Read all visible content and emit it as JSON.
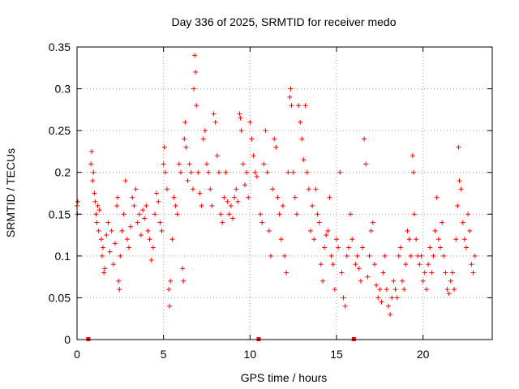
{
  "chart_data": {
    "type": "scatter",
    "title": "Day 336 of 2025, SRMTID for receiver medo",
    "xlabel": "GPS time / hours",
    "ylabel": "SRMTID / TECUs",
    "xlim": [
      0,
      24
    ],
    "ylim": [
      0,
      0.35
    ],
    "x_ticks": [
      0,
      5,
      10,
      15,
      20
    ],
    "x_tick_labels": [
      "0",
      "5",
      "10",
      "15",
      "20"
    ],
    "y_ticks": [
      0,
      0.05,
      0.1,
      0.15,
      0.2,
      0.25,
      0.3,
      0.35
    ],
    "y_tick_labels": [
      "0",
      "0.05",
      "0.1",
      "0.15",
      "0.2",
      "0.25",
      "0.3",
      "0.35"
    ],
    "grid": true,
    "marker": "plus",
    "color": "#ff0000",
    "data_gaps_hours": [
      0.65,
      10.5,
      16.0
    ],
    "series": [
      {
        "name": "SRMTID",
        "points": [
          [
            0.0,
            0.16
          ],
          [
            0.02,
            0.15
          ],
          [
            0.04,
            0.165
          ],
          [
            0.8,
            0.21
          ],
          [
            0.85,
            0.225
          ],
          [
            0.9,
            0.19
          ],
          [
            0.95,
            0.2
          ],
          [
            1.0,
            0.175
          ],
          [
            1.05,
            0.165
          ],
          [
            1.1,
            0.15
          ],
          [
            1.15,
            0.14
          ],
          [
            1.2,
            0.16
          ],
          [
            1.25,
            0.13
          ],
          [
            1.3,
            0.155
          ],
          [
            1.4,
            0.12
          ],
          [
            1.45,
            0.1
          ],
          [
            1.5,
            0.11
          ],
          [
            1.55,
            0.08
          ],
          [
            1.6,
            0.085
          ],
          [
            1.7,
            0.125
          ],
          [
            1.8,
            0.14
          ],
          [
            1.9,
            0.105
          ],
          [
            2.0,
            0.13
          ],
          [
            2.1,
            0.09
          ],
          [
            2.2,
            0.115
          ],
          [
            2.3,
            0.16
          ],
          [
            2.35,
            0.17
          ],
          [
            2.4,
            0.07
          ],
          [
            2.45,
            0.06
          ],
          [
            2.5,
            0.1
          ],
          [
            2.6,
            0.13
          ],
          [
            2.7,
            0.15
          ],
          [
            2.8,
            0.19
          ],
          [
            2.9,
            0.12
          ],
          [
            3.0,
            0.11
          ],
          [
            3.1,
            0.135
          ],
          [
            3.2,
            0.17
          ],
          [
            3.3,
            0.16
          ],
          [
            3.4,
            0.18
          ],
          [
            3.5,
            0.14
          ],
          [
            3.6,
            0.15
          ],
          [
            3.7,
            0.125
          ],
          [
            3.8,
            0.155
          ],
          [
            3.9,
            0.145
          ],
          [
            4.0,
            0.16
          ],
          [
            4.1,
            0.13
          ],
          [
            4.2,
            0.12
          ],
          [
            4.3,
            0.095
          ],
          [
            4.4,
            0.11
          ],
          [
            4.5,
            0.15
          ],
          [
            4.6,
            0.175
          ],
          [
            4.7,
            0.165
          ],
          [
            4.8,
            0.14
          ],
          [
            4.9,
            0.13
          ],
          [
            5.0,
            0.21
          ],
          [
            5.05,
            0.23
          ],
          [
            5.1,
            0.2
          ],
          [
            5.2,
            0.18
          ],
          [
            5.3,
            0.06
          ],
          [
            5.35,
            0.04
          ],
          [
            5.4,
            0.07
          ],
          [
            5.5,
            0.12
          ],
          [
            5.6,
            0.17
          ],
          [
            5.7,
            0.16
          ],
          [
            5.8,
            0.15
          ],
          [
            5.9,
            0.21
          ],
          [
            6.0,
            0.2
          ],
          [
            6.1,
            0.085
          ],
          [
            6.15,
            0.07
          ],
          [
            6.2,
            0.24
          ],
          [
            6.25,
            0.26
          ],
          [
            6.3,
            0.23
          ],
          [
            6.4,
            0.19
          ],
          [
            6.5,
            0.21
          ],
          [
            6.6,
            0.2
          ],
          [
            6.7,
            0.18
          ],
          [
            6.75,
            0.3
          ],
          [
            6.8,
            0.34
          ],
          [
            6.85,
            0.32
          ],
          [
            6.9,
            0.28
          ],
          [
            7.0,
            0.2
          ],
          [
            7.1,
            0.175
          ],
          [
            7.2,
            0.16
          ],
          [
            7.3,
            0.24
          ],
          [
            7.4,
            0.25
          ],
          [
            7.5,
            0.21
          ],
          [
            7.6,
            0.2
          ],
          [
            7.7,
            0.18
          ],
          [
            7.8,
            0.16
          ],
          [
            7.9,
            0.27
          ],
          [
            8.0,
            0.26
          ],
          [
            8.1,
            0.22
          ],
          [
            8.2,
            0.2
          ],
          [
            8.3,
            0.15
          ],
          [
            8.4,
            0.14
          ],
          [
            8.5,
            0.17
          ],
          [
            8.6,
            0.2
          ],
          [
            8.7,
            0.165
          ],
          [
            8.8,
            0.15
          ],
          [
            8.9,
            0.16
          ],
          [
            9.0,
            0.145
          ],
          [
            9.1,
            0.17
          ],
          [
            9.2,
            0.18
          ],
          [
            9.3,
            0.165
          ],
          [
            9.4,
            0.27
          ],
          [
            9.45,
            0.265
          ],
          [
            9.5,
            0.25
          ],
          [
            9.6,
            0.21
          ],
          [
            9.7,
            0.185
          ],
          [
            9.8,
            0.2
          ],
          [
            9.9,
            0.17
          ],
          [
            10.0,
            0.26
          ],
          [
            10.1,
            0.24
          ],
          [
            10.2,
            0.22
          ],
          [
            10.3,
            0.2
          ],
          [
            10.4,
            0.195
          ],
          [
            10.6,
            0.15
          ],
          [
            10.7,
            0.14
          ],
          [
            10.8,
            0.21
          ],
          [
            10.9,
            0.25
          ],
          [
            11.0,
            0.2
          ],
          [
            11.1,
            0.13
          ],
          [
            11.2,
            0.1
          ],
          [
            11.3,
            0.18
          ],
          [
            11.4,
            0.24
          ],
          [
            11.5,
            0.23
          ],
          [
            11.6,
            0.17
          ],
          [
            11.7,
            0.15
          ],
          [
            11.8,
            0.12
          ],
          [
            11.9,
            0.16
          ],
          [
            12.0,
            0.1
          ],
          [
            12.1,
            0.08
          ],
          [
            12.2,
            0.2
          ],
          [
            12.3,
            0.29
          ],
          [
            12.35,
            0.3
          ],
          [
            12.4,
            0.28
          ],
          [
            12.5,
            0.2
          ],
          [
            12.6,
            0.17
          ],
          [
            12.7,
            0.15
          ],
          [
            12.8,
            0.28
          ],
          [
            12.9,
            0.26
          ],
          [
            13.0,
            0.24
          ],
          [
            13.1,
            0.215
          ],
          [
            13.2,
            0.28
          ],
          [
            13.3,
            0.2
          ],
          [
            13.4,
            0.18
          ],
          [
            13.5,
            0.13
          ],
          [
            13.6,
            0.16
          ],
          [
            13.7,
            0.12
          ],
          [
            13.8,
            0.18
          ],
          [
            13.9,
            0.15
          ],
          [
            14.0,
            0.14
          ],
          [
            14.1,
            0.09
          ],
          [
            14.2,
            0.07
          ],
          [
            14.3,
            0.11
          ],
          [
            14.4,
            0.125
          ],
          [
            14.5,
            0.13
          ],
          [
            14.6,
            0.17
          ],
          [
            14.7,
            0.1
          ],
          [
            14.8,
            0.09
          ],
          [
            14.9,
            0.06
          ],
          [
            15.0,
            0.12
          ],
          [
            15.1,
            0.11
          ],
          [
            15.2,
            0.2
          ],
          [
            15.3,
            0.08
          ],
          [
            15.4,
            0.05
          ],
          [
            15.5,
            0.04
          ],
          [
            15.6,
            0.1
          ],
          [
            15.7,
            0.11
          ],
          [
            15.8,
            0.15
          ],
          [
            15.9,
            0.12
          ],
          [
            16.1,
            0.09
          ],
          [
            16.2,
            0.1
          ],
          [
            16.3,
            0.085
          ],
          [
            16.4,
            0.07
          ],
          [
            16.5,
            0.11
          ],
          [
            16.6,
            0.24
          ],
          [
            16.7,
            0.21
          ],
          [
            16.8,
            0.075
          ],
          [
            16.9,
            0.1
          ],
          [
            17.0,
            0.13
          ],
          [
            17.1,
            0.14
          ],
          [
            17.2,
            0.09
          ],
          [
            17.3,
            0.065
          ],
          [
            17.4,
            0.05
          ],
          [
            17.5,
            0.06
          ],
          [
            17.6,
            0.045
          ],
          [
            17.7,
            0.08
          ],
          [
            17.8,
            0.1
          ],
          [
            17.9,
            0.06
          ],
          [
            18.0,
            0.04
          ],
          [
            18.1,
            0.03
          ],
          [
            18.2,
            0.05
          ],
          [
            18.3,
            0.07
          ],
          [
            18.4,
            0.06
          ],
          [
            18.5,
            0.05
          ],
          [
            18.6,
            0.1
          ],
          [
            18.7,
            0.11
          ],
          [
            18.8,
            0.07
          ],
          [
            18.9,
            0.06
          ],
          [
            19.0,
            0.09
          ],
          [
            19.1,
            0.13
          ],
          [
            19.2,
            0.12
          ],
          [
            19.3,
            0.1
          ],
          [
            19.4,
            0.22
          ],
          [
            19.45,
            0.2
          ],
          [
            19.5,
            0.15
          ],
          [
            19.6,
            0.12
          ],
          [
            19.7,
            0.1
          ],
          [
            19.8,
            0.09
          ],
          [
            19.9,
            0.1
          ],
          [
            20.0,
            0.07
          ],
          [
            20.1,
            0.08
          ],
          [
            20.2,
            0.06
          ],
          [
            20.3,
            0.09
          ],
          [
            20.4,
            0.11
          ],
          [
            20.5,
            0.08
          ],
          [
            20.6,
            0.1
          ],
          [
            20.7,
            0.13
          ],
          [
            20.8,
            0.17
          ],
          [
            20.9,
            0.12
          ],
          [
            21.0,
            0.11
          ],
          [
            21.1,
            0.14
          ],
          [
            21.2,
            0.1
          ],
          [
            21.3,
            0.08
          ],
          [
            21.4,
            0.06
          ],
          [
            21.5,
            0.055
          ],
          [
            21.6,
            0.07
          ],
          [
            21.7,
            0.08
          ],
          [
            21.8,
            0.06
          ],
          [
            21.9,
            0.12
          ],
          [
            22.0,
            0.16
          ],
          [
            22.05,
            0.23
          ],
          [
            22.1,
            0.19
          ],
          [
            22.2,
            0.18
          ],
          [
            22.3,
            0.14
          ],
          [
            22.4,
            0.12
          ],
          [
            22.5,
            0.11
          ],
          [
            22.6,
            0.15
          ],
          [
            22.7,
            0.13
          ],
          [
            22.8,
            0.09
          ],
          [
            22.9,
            0.08
          ],
          [
            23.0,
            0.1
          ]
        ]
      }
    ]
  }
}
